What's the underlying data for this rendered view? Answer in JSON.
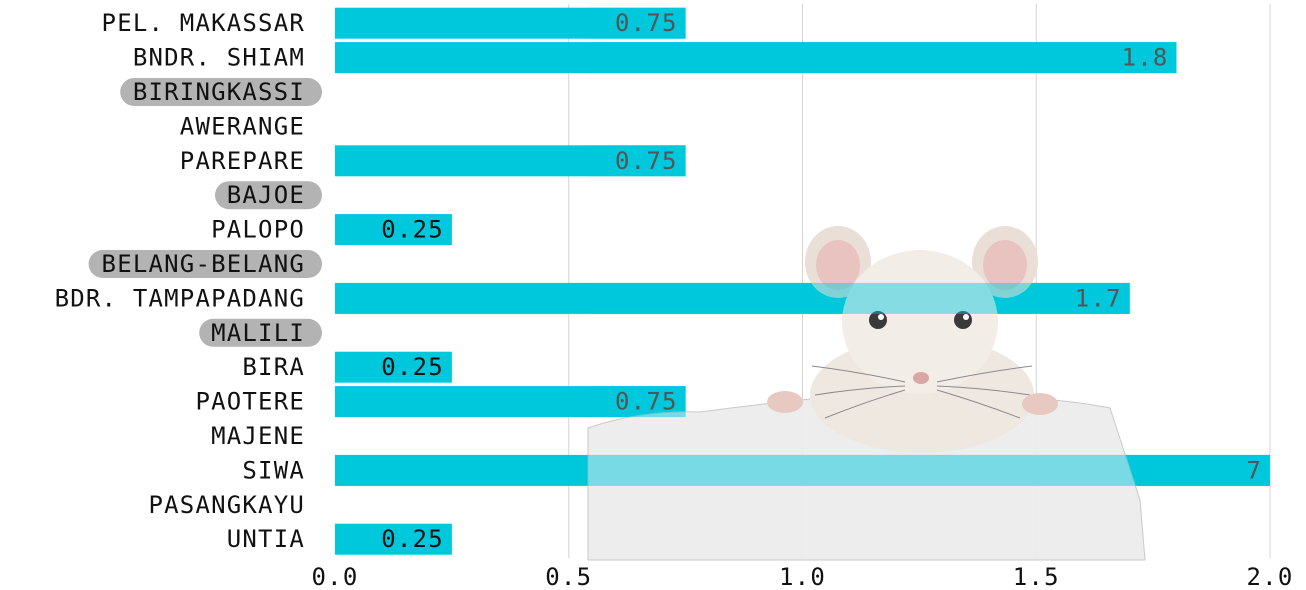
{
  "chart_data": {
    "type": "bar",
    "orientation": "horizontal",
    "categories": [
      "PEL. MAKASSAR",
      "BNDR. SHIAM",
      "BIRINGKASSI",
      "AWERANGE",
      "PAREPARE",
      "BAJOE",
      "PALOPO",
      "BELANG-BELANG",
      "BDR. TAMPAPADANG",
      "MALILI",
      "BIRA",
      "PAOTERE",
      "MAJENE",
      "SIWA",
      "PASANGKAYU",
      "UNTIA"
    ],
    "values": [
      0.75,
      1.8,
      null,
      null,
      0.75,
      null,
      0.25,
      null,
      1.7,
      null,
      0.25,
      0.75,
      null,
      7,
      null,
      0.25
    ],
    "data_labels": [
      "0.75",
      "1.8",
      "",
      "",
      "0.75",
      "",
      "0.25",
      "",
      "1.7",
      "",
      "0.25",
      "0.75",
      "",
      "7",
      "",
      "0.25"
    ],
    "highlighted_categories": [
      "BIRINGKASSI",
      "BAJOE",
      "BELANG-BELANG",
      "MALILI"
    ],
    "xlim": [
      0,
      2.0
    ],
    "x_ticks": [
      "0.0",
      "0.5",
      "1.0",
      "1.5",
      "2.0"
    ],
    "x_tick_values": [
      0,
      0.5,
      1.0,
      1.5,
      2.0
    ],
    "grid": true,
    "title": "",
    "xlabel": "",
    "ylabel": "",
    "colors": {
      "bar": "#00c8dc",
      "highlight_pill": "#b3b3b3",
      "grid": "#d4d4d4",
      "text": "#111111"
    }
  }
}
